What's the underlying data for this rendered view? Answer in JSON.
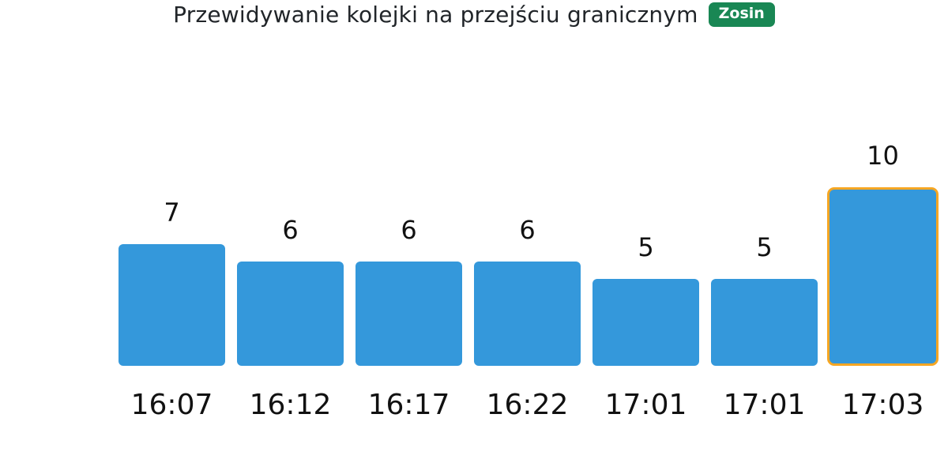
{
  "header": {
    "title": "Przewidywanie kolejki na przejściu granicznym",
    "badge": {
      "label": "Zosin",
      "background": "#198754",
      "text_color": "#ffffff"
    }
  },
  "chart_data": {
    "type": "bar",
    "title": "Przewidywanie kolejki na przejściu granicznym",
    "categories": [
      "16:07",
      "16:12",
      "16:17",
      "16:22",
      "17:01",
      "17:01",
      "17:03"
    ],
    "values": [
      7,
      6,
      6,
      6,
      5,
      5,
      10
    ],
    "xlabel": "",
    "ylabel": "",
    "ylim": [
      0,
      10
    ],
    "grid": false,
    "axes_shown": false,
    "value_labels_shown": true,
    "bar_color": "#3498db",
    "highlight": {
      "index": 6,
      "border_color": "#f5a623",
      "border_width_px": 3
    }
  }
}
